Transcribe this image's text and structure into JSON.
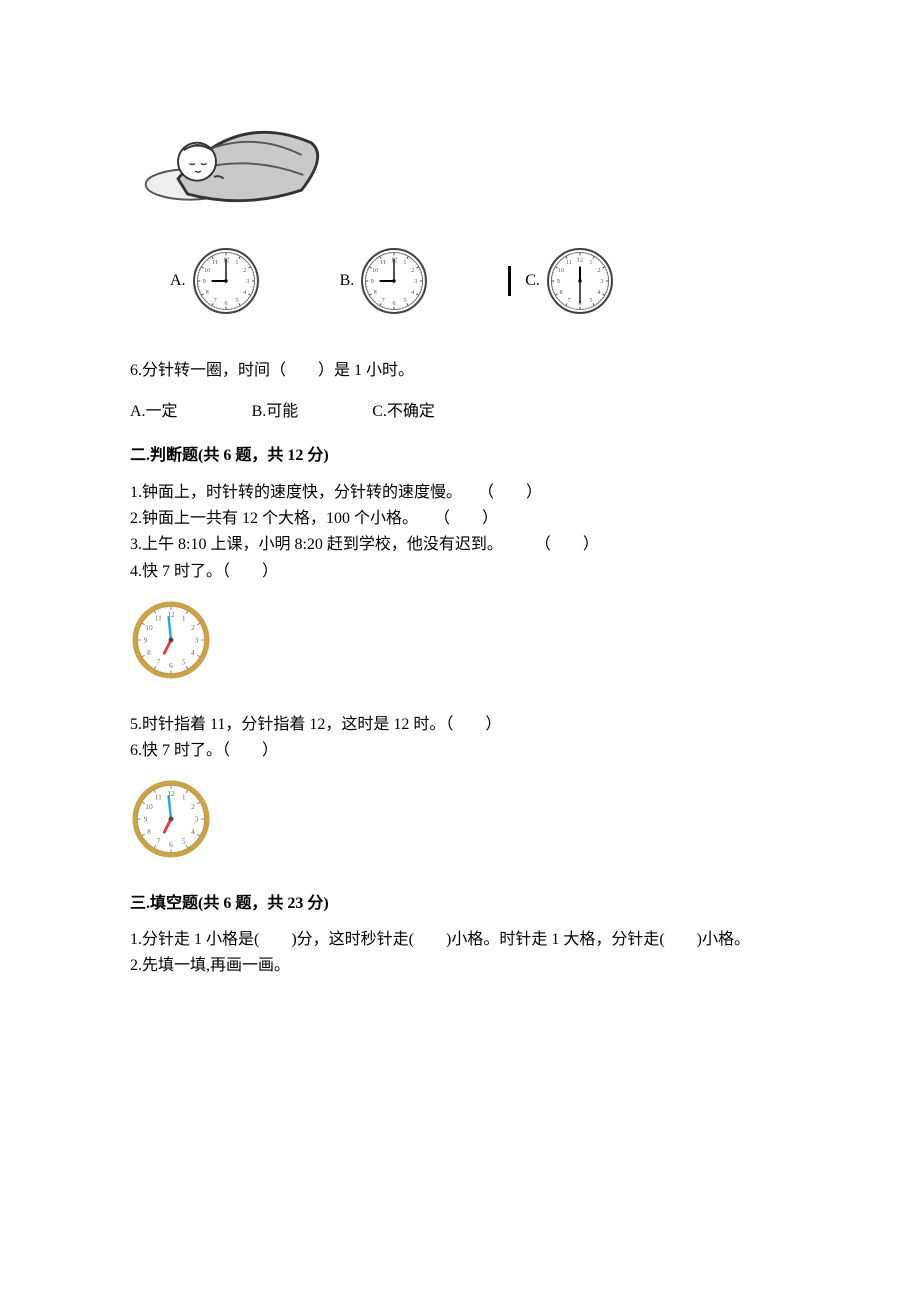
{
  "sleeping_image": {
    "width": 190,
    "height": 110,
    "stroke": "#333333",
    "fill_blanket": "#c9c9c9",
    "fill_head": "#ffffff",
    "fill_hair": "#3a3a3a"
  },
  "clocks_row": {
    "options": [
      {
        "letter": "A.",
        "hour_angle": 270,
        "minute_angle": 0
      },
      {
        "letter": "B.",
        "hour_angle": 270,
        "minute_angle": 0
      },
      {
        "letter": "C.",
        "hour_angle": 0,
        "minute_angle": 180
      }
    ],
    "size": 68,
    "face_stroke": "#444444",
    "number_color": "#555555"
  },
  "q6": {
    "text": "6.分针转一圈，时间（　　）是 1 小时。",
    "options": [
      "A.一定",
      "B.可能",
      "C.不确定"
    ]
  },
  "section2": {
    "header": "二.判断题(共 6 题，共 12 分)",
    "items": [
      "1.钟面上，时针转的速度快，分针转的速度慢。　　（　　）",
      "2.钟面上一共有 12 个大格，100 个小格。　　（　　）",
      "3.上午 8:10 上课，小明 8:20 赶到学校，他没有迟到。　　　（　　）",
      "4.快 7 时了。（　　）"
    ],
    "items_b": [
      "5.时针指着 11，分针指着 12，这时是 12 时。（　　）",
      "6.快 7 时了。（　　）"
    ]
  },
  "color_clock": {
    "size": 82,
    "rim_color": "#c9a24a",
    "face_bg": "#ffffff",
    "number_color": "#6a6a6a",
    "hour_hand": {
      "color": "#e23b3b",
      "angle": 207,
      "len": 18
    },
    "minute_hand": {
      "color": "#2aa4dd",
      "angle": 354,
      "len": 28
    },
    "center_color": "#5e4b2f"
  },
  "section3": {
    "header": "三.填空题(共 6 题，共 23 分)",
    "items": [
      "1.分针走 1 小格是(　　)分，这时秒针走(　　)小格。时针走 1 大格，分针走(　　)小格。",
      "2.先填一填,再画一画。"
    ]
  }
}
